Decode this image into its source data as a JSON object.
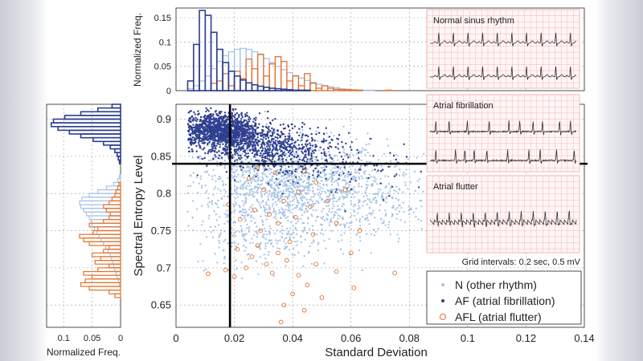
{
  "colors": {
    "n": "#a7c3e6",
    "af": "#2f3f8f",
    "afl": "#e3732c",
    "axis": "#222222",
    "grid": "#9a9a9a",
    "ecg_grid": "#f2a6a6",
    "ecg_line": "#333333",
    "threshold": "#000000"
  },
  "chart_data": [
    {
      "id": "main_scatter",
      "type": "scatter",
      "title": "",
      "xlabel": "Standard Deviation",
      "ylabel": "Spectral Entropy Level",
      "xlim": [
        0,
        0.14
      ],
      "ylim": [
        0.62,
        0.92
      ],
      "xticks": [
        0,
        0.02,
        0.04,
        0.06,
        0.08,
        0.1,
        0.12,
        0.14
      ],
      "xtick_labels": [
        "0",
        "0.02",
        "0.04",
        "0.06",
        "0.08",
        "0.1",
        "0.12",
        "0.14"
      ],
      "yticks": [
        0.65,
        0.7,
        0.75,
        0.8,
        0.85,
        0.9
      ],
      "ytick_labels": [
        "0.65",
        "0.7",
        "0.75",
        "0.8",
        "0.85",
        "0.9"
      ],
      "grid": true,
      "thresholds": {
        "x": 0.0185,
        "y": 0.84
      },
      "series": [
        {
          "name": "N (other rhythm)",
          "marker": "dot",
          "clusters": [
            {
              "x_center": 0.038,
              "y_center": 0.812,
              "x_spread": 0.017,
              "y_spread": 0.03,
              "count": 1400
            },
            {
              "x_center": 0.065,
              "y_center": 0.79,
              "x_spread": 0.015,
              "y_spread": 0.03,
              "count": 300
            },
            {
              "x_center": 0.03,
              "y_center": 0.74,
              "x_spread": 0.012,
              "y_spread": 0.02,
              "count": 200
            }
          ]
        },
        {
          "name": "AF (atrial fibrillation)",
          "marker": "dot",
          "clusters": [
            {
              "x_center": 0.015,
              "y_center": 0.885,
              "x_spread": 0.007,
              "y_spread": 0.012,
              "count": 1300
            },
            {
              "x_center": 0.032,
              "y_center": 0.862,
              "x_spread": 0.011,
              "y_spread": 0.014,
              "count": 650
            },
            {
              "x_center": 0.055,
              "y_center": 0.835,
              "x_spread": 0.015,
              "y_spread": 0.02,
              "count": 120
            }
          ]
        },
        {
          "name": "AFL (atrial flutter)",
          "marker": "circle",
          "points": [
            [
              0.011,
              0.692
            ],
            [
              0.017,
              0.697
            ],
            [
              0.02,
              0.688
            ],
            [
              0.024,
              0.7
            ],
            [
              0.026,
              0.715
            ],
            [
              0.021,
              0.725
            ],
            [
              0.028,
              0.73
            ],
            [
              0.031,
              0.705
            ],
            [
              0.035,
              0.72
            ],
            [
              0.033,
              0.693
            ],
            [
              0.038,
              0.71
            ],
            [
              0.042,
              0.69
            ],
            [
              0.045,
              0.677
            ],
            [
              0.048,
              0.705
            ],
            [
              0.04,
              0.665
            ],
            [
              0.037,
              0.65
            ],
            [
              0.044,
              0.643
            ],
            [
              0.05,
              0.66
            ],
            [
              0.055,
              0.695
            ],
            [
              0.061,
              0.673
            ],
            [
              0.029,
              0.75
            ],
            [
              0.035,
              0.76
            ],
            [
              0.022,
              0.765
            ],
            [
              0.027,
              0.778
            ],
            [
              0.032,
              0.772
            ],
            [
              0.041,
              0.768
            ],
            [
              0.046,
              0.782
            ],
            [
              0.052,
              0.79
            ],
            [
              0.037,
              0.79
            ],
            [
              0.03,
              0.805
            ],
            [
              0.042,
              0.802
            ],
            [
              0.048,
              0.815
            ],
            [
              0.025,
              0.82
            ],
            [
              0.034,
              0.828
            ],
            [
              0.044,
              0.83
            ],
            [
              0.028,
              0.835
            ],
            [
              0.055,
              0.76
            ],
            [
              0.06,
              0.72
            ],
            [
              0.075,
              0.693
            ],
            [
              0.063,
              0.75
            ],
            [
              0.018,
              0.785
            ],
            [
              0.036,
              0.627
            ],
            [
              0.047,
              0.745
            ],
            [
              0.039,
              0.735
            ],
            [
              0.058,
              0.805
            ]
          ]
        }
      ],
      "legend": [
        {
          "label": "N (other rhythm)",
          "series": "n",
          "marker": "dot"
        },
        {
          "label": "AF (atrial fibrillation)",
          "series": "af",
          "marker": "dot"
        },
        {
          "label": "AFL (atrial flutter)",
          "series": "afl",
          "marker": "circle"
        }
      ],
      "legend_position": "bottom-right"
    },
    {
      "id": "top_histogram",
      "type": "bar",
      "orientation": "vertical",
      "ylabel": "Normalized Freq.",
      "xlim": [
        0,
        0.14
      ],
      "ylim": [
        0,
        0.17
      ],
      "yticks": [
        0,
        0.05,
        0.1,
        0.15
      ],
      "ytick_labels": [
        "0",
        "0.05",
        "0.1",
        "0.15"
      ],
      "bin_width": 0.002,
      "bin_start": 0.004,
      "series": [
        {
          "name": "N",
          "values": [
            0.004,
            0.01,
            0.02,
            0.03,
            0.045,
            0.06,
            0.072,
            0.08,
            0.085,
            0.087,
            0.085,
            0.08,
            0.074,
            0.066,
            0.058,
            0.05,
            0.043,
            0.037,
            0.031,
            0.026,
            0.021,
            0.017,
            0.013,
            0.01,
            0.008,
            0.006,
            0.004,
            0.003,
            0.002,
            0.001,
            0.001,
            0.001,
            0.0,
            0.0,
            0.0,
            0.0,
            0.0,
            0.0,
            0.0,
            0.0
          ]
        },
        {
          "name": "AF",
          "values": [
            0.02,
            0.095,
            0.165,
            0.155,
            0.12,
            0.085,
            0.058,
            0.04,
            0.03,
            0.022,
            0.016,
            0.012,
            0.009,
            0.007,
            0.005,
            0.004,
            0.003,
            0.002,
            0.001,
            0.001,
            0.001,
            0.0,
            0.0,
            0.0,
            0.0,
            0.0,
            0.0,
            0.0,
            0.0,
            0.0,
            0.0,
            0.0,
            0.0,
            0.0,
            0.0,
            0.0,
            0.0,
            0.0,
            0.0,
            0.0
          ]
        },
        {
          "name": "AFL",
          "values": [
            0.0,
            0.0,
            0.0,
            0.0,
            0.015,
            0.02,
            0.035,
            0.01,
            0.04,
            0.025,
            0.065,
            0.045,
            0.075,
            0.03,
            0.055,
            0.07,
            0.06,
            0.02,
            0.03,
            0.01,
            0.035,
            0.015,
            0.005,
            0.01,
            0.005,
            0.003,
            0.002,
            0.002,
            0.001,
            0.001,
            0.0,
            0.0,
            0.0,
            0.0,
            0.001,
            0.0,
            0.0,
            0.0,
            0.0,
            0.0
          ]
        }
      ]
    },
    {
      "id": "left_histogram",
      "type": "bar",
      "orientation": "horizontal",
      "xlabel": "Normalized Freq.",
      "xlim": [
        0.13,
        0
      ],
      "xticks": [
        0.1,
        0.05,
        0
      ],
      "xtick_labels": [
        "0.1",
        "0.05",
        "0"
      ],
      "ylim": [
        0.62,
        0.92
      ],
      "bin_width": 0.005,
      "bin_start": 0.66,
      "series": [
        {
          "name": "N",
          "values": [
            0.0,
            0.0,
            0.0,
            0.002,
            0.004,
            0.006,
            0.008,
            0.01,
            0.012,
            0.014,
            0.016,
            0.018,
            0.022,
            0.026,
            0.03,
            0.034,
            0.038,
            0.042,
            0.046,
            0.05,
            0.052,
            0.055,
            0.06,
            0.065,
            0.07,
            0.072,
            0.068,
            0.055,
            0.04,
            0.025,
            0.012,
            0.005,
            0.002,
            0.0,
            0.0,
            0.0,
            0.0,
            0.0,
            0.0,
            0.0,
            0.0,
            0.0,
            0.0,
            0.0,
            0.0,
            0.0,
            0.0,
            0.0,
            0.0,
            0.0,
            0.0,
            0.0
          ]
        },
        {
          "name": "AF",
          "values": [
            0.0,
            0.0,
            0.0,
            0.0,
            0.0,
            0.0,
            0.0,
            0.0,
            0.0,
            0.0,
            0.0,
            0.0,
            0.0,
            0.0,
            0.0,
            0.0,
            0.0,
            0.0,
            0.0,
            0.0,
            0.0,
            0.0,
            0.0,
            0.0,
            0.0,
            0.0,
            0.0,
            0.0,
            0.0,
            0.0,
            0.0,
            0.0,
            0.0,
            0.0,
            0.0,
            0.0,
            0.002,
            0.004,
            0.006,
            0.01,
            0.018,
            0.03,
            0.048,
            0.07,
            0.09,
            0.11,
            0.122,
            0.118,
            0.098,
            0.07,
            0.04,
            0.015
          ]
        },
        {
          "name": "AFL",
          "values": [
            0.01,
            0.02,
            0.055,
            0.07,
            0.062,
            0.05,
            0.065,
            0.04,
            0.02,
            0.045,
            0.035,
            0.05,
            0.03,
            0.02,
            0.055,
            0.065,
            0.072,
            0.048,
            0.04,
            0.055,
            0.03,
            0.02,
            0.018,
            0.025,
            0.03,
            0.02,
            0.015,
            0.01,
            0.008,
            0.005,
            0.003,
            0.0,
            0.0,
            0.0,
            0.0,
            0.0,
            0.0,
            0.0,
            0.0,
            0.0,
            0.0,
            0.0,
            0.0,
            0.0,
            0.0,
            0.0,
            0.0,
            0.0,
            0.0,
            0.0,
            0.0,
            0.0
          ]
        }
      ]
    }
  ],
  "ecg_panels": [
    {
      "title": "Normal sinus rhythm",
      "rhythm": "normal"
    },
    {
      "title": "Atrial fibrillation",
      "rhythm": "af"
    },
    {
      "title": "Atrial flutter",
      "rhythm": "flutter"
    }
  ],
  "ecg_caption": "Grid intervals: 0.2 sec, 0.5 mV"
}
